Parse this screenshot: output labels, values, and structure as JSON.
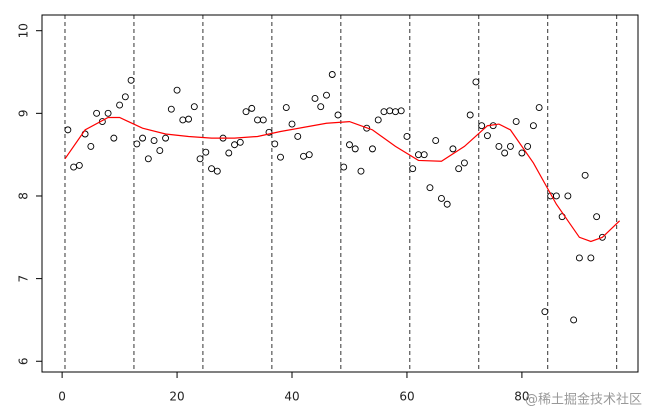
{
  "chart_data": {
    "type": "scatter",
    "xlim": [
      -3.5,
      100.2
    ],
    "ylim": [
      5.87,
      10.19
    ],
    "xticks": [
      0,
      20,
      40,
      60,
      80
    ],
    "yticks": [
      6,
      7,
      8,
      9,
      10
    ],
    "vlines": [
      0.5,
      12.5,
      24.5,
      36.5,
      48.5,
      60.5,
      72.5,
      84.5,
      96.5
    ],
    "series": [
      {
        "name": "observed",
        "color": "#000000",
        "x": [
          1,
          2,
          3,
          4,
          5,
          6,
          7,
          8,
          9,
          10,
          11,
          12,
          13,
          14,
          15,
          16,
          17,
          18,
          19,
          20,
          21,
          22,
          23,
          24,
          25,
          26,
          27,
          28,
          29,
          30,
          31,
          32,
          33,
          34,
          35,
          36,
          37,
          38,
          39,
          40,
          41,
          42,
          43,
          44,
          45,
          46,
          47,
          48,
          49,
          50,
          51,
          52,
          53,
          54,
          55,
          56,
          57,
          58,
          59,
          60,
          61,
          62,
          63,
          64,
          65,
          66,
          67,
          68,
          69,
          70,
          71,
          72,
          73,
          74,
          75,
          76,
          77,
          78,
          79,
          80,
          81,
          82,
          83,
          84,
          85,
          86,
          87,
          88,
          89,
          90,
          91,
          92,
          93,
          94
        ],
        "values": [
          8.8,
          8.35,
          8.37,
          8.75,
          8.6,
          9.0,
          8.9,
          9.0,
          8.7,
          9.1,
          9.2,
          9.4,
          8.63,
          8.7,
          8.45,
          8.67,
          8.55,
          8.7,
          9.05,
          9.28,
          8.92,
          8.93,
          9.08,
          8.45,
          8.53,
          8.33,
          8.3,
          8.7,
          8.52,
          8.62,
          8.65,
          9.02,
          9.06,
          8.92,
          8.92,
          8.77,
          8.63,
          8.47,
          9.07,
          8.87,
          8.72,
          8.48,
          8.5,
          9.18,
          9.08,
          9.22,
          9.47,
          8.98,
          8.35,
          8.62,
          8.57,
          8.3,
          8.82,
          8.57,
          8.92,
          9.02,
          9.03,
          9.02,
          9.03,
          8.72,
          8.33,
          8.5,
          8.5,
          8.1,
          8.67,
          7.97,
          7.9,
          8.57,
          8.33,
          8.4,
          8.98,
          9.38,
          8.85,
          8.73,
          8.85,
          8.6,
          8.52,
          8.6,
          8.9,
          8.52,
          8.6,
          8.85,
          9.07,
          6.6,
          8.0,
          8.0,
          7.75,
          8.0,
          6.5,
          7.25,
          8.25,
          7.25,
          7.75,
          7.5
        ]
      },
      {
        "name": "smooth",
        "color": "#ff0000",
        "x": [
          0.5,
          4,
          8,
          10,
          14,
          18,
          22,
          26,
          30,
          34,
          38,
          42,
          46,
          50,
          54,
          58,
          62,
          66,
          70,
          74,
          76,
          78,
          82,
          86,
          90,
          92,
          94,
          97
        ],
        "values": [
          8.45,
          8.8,
          8.95,
          8.95,
          8.82,
          8.75,
          8.72,
          8.7,
          8.7,
          8.72,
          8.78,
          8.83,
          8.88,
          8.9,
          8.8,
          8.6,
          8.43,
          8.42,
          8.6,
          8.85,
          8.87,
          8.8,
          8.4,
          7.9,
          7.5,
          7.45,
          7.5,
          7.7
        ]
      }
    ],
    "watermark": "@稀土掘金技术社区"
  }
}
